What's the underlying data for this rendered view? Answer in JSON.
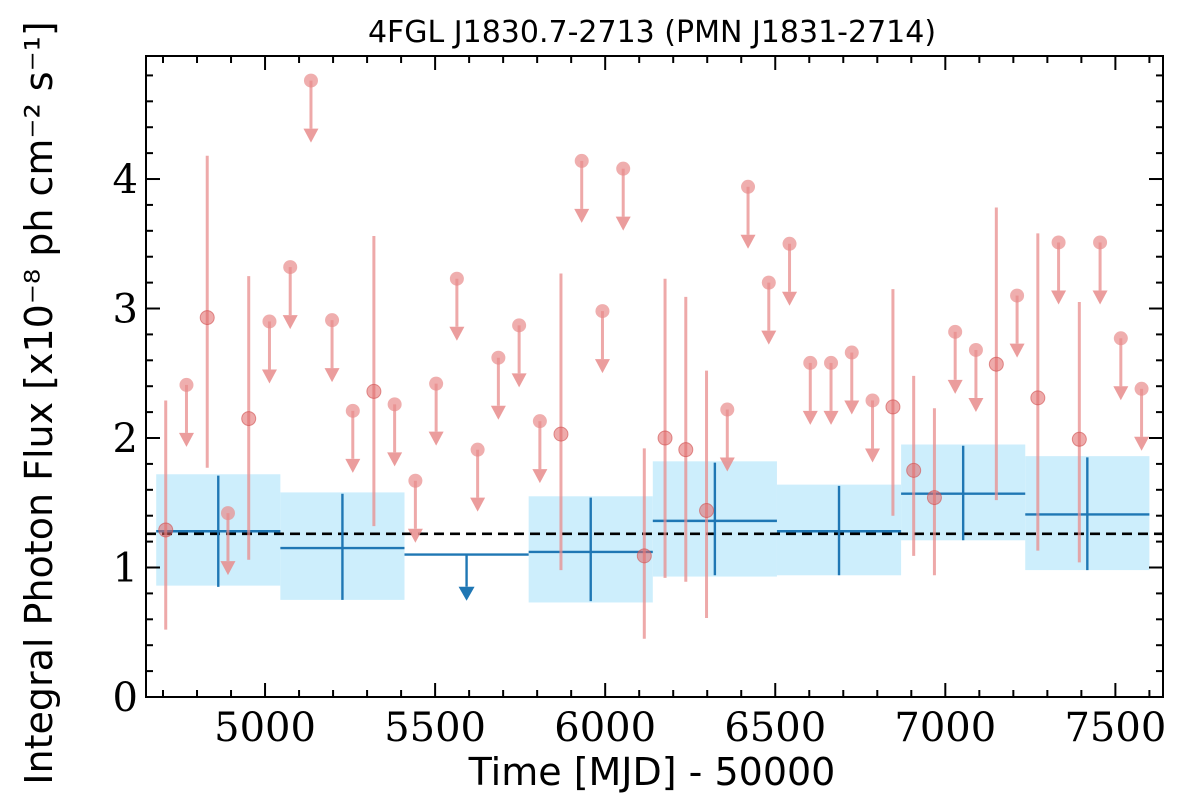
{
  "chart_data": {
    "type": "scatter",
    "title": "4FGL J1830.7-2713 (PMN J1831-2714)",
    "xlabel": "Time [MJD] - 50000",
    "ylabel": "Integral Photon Flux [x10⁻⁸ ph cm⁻² s⁻¹]",
    "xlim": [
      4650,
      7640
    ],
    "ylim": [
      0,
      4.95
    ],
    "x_ticks": [
      5000,
      5500,
      6000,
      6500,
      7000,
      7500
    ],
    "y_ticks": [
      0,
      1,
      2,
      3,
      4
    ],
    "x_tick_labels": [
      "5000",
      "5500",
      "6000",
      "6500",
      "7000",
      "7500"
    ],
    "y_tick_labels": [
      "0",
      "1",
      "2",
      "3",
      "4"
    ],
    "grid": false,
    "mean_flux": 1.26,
    "series": [
      {
        "color": "#e88c8c",
        "detections": [
          {
            "x": 4708,
            "y": 1.29,
            "ylo": 0.52,
            "yhi": 2.29
          },
          {
            "x": 4830,
            "y": 2.93,
            "ylo": 1.77,
            "yhi": 4.18
          },
          {
            "x": 4952,
            "y": 2.15,
            "ylo": 1.06,
            "yhi": 3.25
          },
          {
            "x": 5320,
            "y": 2.36,
            "ylo": 1.32,
            "yhi": 3.56
          },
          {
            "x": 5870,
            "y": 2.03,
            "ylo": 0.98,
            "yhi": 3.27
          },
          {
            "x": 6115,
            "y": 1.09,
            "ylo": 0.45,
            "yhi": 1.92
          },
          {
            "x": 6176,
            "y": 2.0,
            "ylo": 0.92,
            "yhi": 3.23
          },
          {
            "x": 6237,
            "y": 1.91,
            "ylo": 0.89,
            "yhi": 3.09
          },
          {
            "x": 6298,
            "y": 1.44,
            "ylo": 0.61,
            "yhi": 2.52
          },
          {
            "x": 6846,
            "y": 2.24,
            "ylo": 1.4,
            "yhi": 3.15
          },
          {
            "x": 6907,
            "y": 1.75,
            "ylo": 1.09,
            "yhi": 2.48
          },
          {
            "x": 6968,
            "y": 1.54,
            "ylo": 0.94,
            "yhi": 2.23
          },
          {
            "x": 7150,
            "y": 2.57,
            "ylo": 1.52,
            "yhi": 3.78
          },
          {
            "x": 7272,
            "y": 2.31,
            "ylo": 1.13,
            "yhi": 3.58
          },
          {
            "x": 7394,
            "y": 1.99,
            "ylo": 1.04,
            "yhi": 3.05
          }
        ],
        "upper_limits": [
          {
            "x": 4769,
            "y": 2.41
          },
          {
            "x": 4891,
            "y": 1.42
          },
          {
            "x": 5013,
            "y": 2.9
          },
          {
            "x": 5074,
            "y": 3.32
          },
          {
            "x": 5135,
            "y": 4.76
          },
          {
            "x": 5197,
            "y": 2.91
          },
          {
            "x": 5258,
            "y": 2.21
          },
          {
            "x": 5381,
            "y": 2.26
          },
          {
            "x": 5442,
            "y": 1.67
          },
          {
            "x": 5503,
            "y": 2.42
          },
          {
            "x": 5564,
            "y": 3.23
          },
          {
            "x": 5625,
            "y": 1.91
          },
          {
            "x": 5686,
            "y": 2.62
          },
          {
            "x": 5747,
            "y": 2.87
          },
          {
            "x": 5808,
            "y": 2.13
          },
          {
            "x": 5931,
            "y": 4.14
          },
          {
            "x": 5992,
            "y": 2.98
          },
          {
            "x": 6053,
            "y": 4.08
          },
          {
            "x": 6359,
            "y": 2.22
          },
          {
            "x": 6420,
            "y": 3.94
          },
          {
            "x": 6481,
            "y": 3.2
          },
          {
            "x": 6542,
            "y": 3.5
          },
          {
            "x": 6603,
            "y": 2.58
          },
          {
            "x": 6664,
            "y": 2.58
          },
          {
            "x": 6725,
            "y": 2.66
          },
          {
            "x": 6786,
            "y": 2.29
          },
          {
            "x": 7029,
            "y": 2.82
          },
          {
            "x": 7090,
            "y": 2.68
          },
          {
            "x": 7211,
            "y": 3.1
          },
          {
            "x": 7333,
            "y": 3.51
          },
          {
            "x": 7455,
            "y": 3.51
          },
          {
            "x": 7516,
            "y": 2.77
          },
          {
            "x": 7577,
            "y": 2.38
          }
        ]
      },
      {
        "color": "#1f77b4",
        "band_color": "#cdeefc",
        "bins": [
          {
            "x0": 4680,
            "x1": 5045,
            "y": 1.28,
            "ylo": 0.85,
            "yhi": 1.71,
            "band_lo": 0.86,
            "band_hi": 1.72
          },
          {
            "x0": 5045,
            "x1": 5410,
            "y": 1.15,
            "ylo": 0.75,
            "yhi": 1.57,
            "band_lo": 0.75,
            "band_hi": 1.58
          },
          {
            "x0": 5410,
            "x1": 5775,
            "y": 1.1,
            "upper_limit": true,
            "arrow_to": 0.79
          },
          {
            "x0": 5775,
            "x1": 6140,
            "y": 1.12,
            "ylo": 0.74,
            "yhi": 1.54,
            "band_lo": 0.73,
            "band_hi": 1.55
          },
          {
            "x0": 6140,
            "x1": 6505,
            "y": 1.36,
            "ylo": 0.94,
            "yhi": 1.81,
            "band_lo": 0.93,
            "band_hi": 1.82
          },
          {
            "x0": 6505,
            "x1": 6870,
            "y": 1.28,
            "ylo": 0.94,
            "yhi": 1.63,
            "band_lo": 0.94,
            "band_hi": 1.64
          },
          {
            "x0": 6870,
            "x1": 7235,
            "y": 1.57,
            "ylo": 1.21,
            "yhi": 1.94,
            "band_lo": 1.21,
            "band_hi": 1.95
          },
          {
            "x0": 7235,
            "x1": 7600,
            "y": 1.41,
            "ylo": 0.98,
            "yhi": 1.85,
            "band_lo": 0.98,
            "band_hi": 1.86
          }
        ]
      }
    ]
  }
}
